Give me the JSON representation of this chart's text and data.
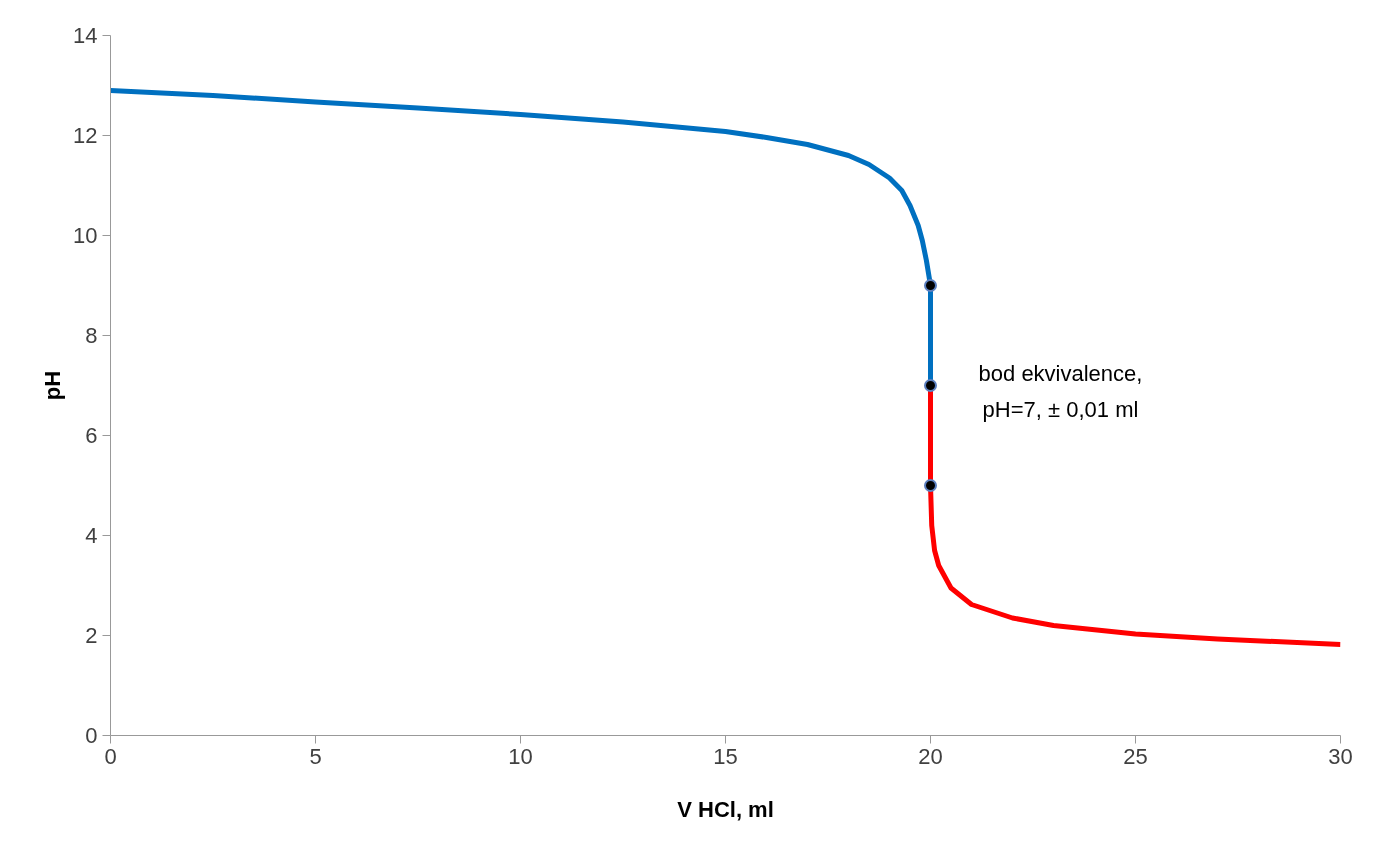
{
  "chart_data": {
    "type": "line",
    "xlabel": "V HCl, ml",
    "ylabel": "pH",
    "xlim": [
      0,
      30
    ],
    "ylim": [
      0,
      14
    ],
    "xticks": [
      0,
      5,
      10,
      15,
      20,
      25,
      30
    ],
    "yticks": [
      0,
      2,
      4,
      6,
      8,
      10,
      12,
      14
    ],
    "grid": false,
    "series": [
      {
        "color": "#0070c0",
        "x": [
          0,
          2.5,
          5,
          7.5,
          10,
          12.5,
          15,
          16,
          17,
          18,
          18.5,
          19,
          19.3,
          19.5,
          19.7,
          19.8,
          19.9,
          19.95,
          20,
          20
        ],
        "values": [
          12.9,
          12.8,
          12.67,
          12.55,
          12.42,
          12.27,
          12.08,
          11.96,
          11.82,
          11.6,
          11.42,
          11.15,
          10.9,
          10.6,
          10.2,
          9.9,
          9.5,
          9.25,
          9,
          7
        ]
      },
      {
        "color": "#ff0000",
        "x": [
          20,
          20,
          20.03,
          20.1,
          20.2,
          20.5,
          21,
          22,
          23,
          25,
          27,
          30
        ],
        "values": [
          7,
          5,
          4.2,
          3.7,
          3.4,
          2.95,
          2.62,
          2.35,
          2.2,
          2.03,
          1.93,
          1.82
        ]
      },
      {
        "type": "scatter",
        "marker": "circle",
        "color": "#000000",
        "x": [
          20,
          20,
          20
        ],
        "values": [
          9,
          7,
          5
        ]
      }
    ],
    "annotations": [
      {
        "text": "bod ekvivalence,\npH=7, ± 0,01 ml",
        "x": 20,
        "y": 7
      }
    ]
  }
}
